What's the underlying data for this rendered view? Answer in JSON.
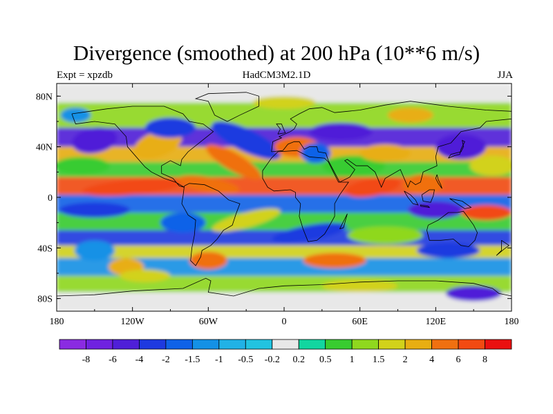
{
  "title": "Divergence (smoothed) at 200 hPa (10**6 m/s)",
  "subtitle_left": "Expt = xpzdb",
  "subtitle_center": "HadCM3M2.1D",
  "subtitle_right": "JJA",
  "map": {
    "lon_range": [
      -180,
      180
    ],
    "lat_range": [
      -90,
      90
    ],
    "lat_ticks": [
      {
        "value": 80,
        "label": "80N"
      },
      {
        "value": 40,
        "label": "40N"
      },
      {
        "value": 0,
        "label": "0"
      },
      {
        "value": -40,
        "label": "40S"
      },
      {
        "value": -80,
        "label": "80S"
      }
    ],
    "lon_ticks": [
      {
        "value": -180,
        "label": "180"
      },
      {
        "value": -120,
        "label": "120W"
      },
      {
        "value": -60,
        "label": "60W"
      },
      {
        "value": 0,
        "label": "0"
      },
      {
        "value": 60,
        "label": "60E"
      },
      {
        "value": 120,
        "label": "120E"
      },
      {
        "value": 180,
        "label": "180"
      }
    ]
  },
  "colorbar": {
    "levels": [
      "-8",
      "-6",
      "-4",
      "-2",
      "-1.5",
      "-1",
      "-0.5",
      "-0.2",
      "0.2",
      "0.5",
      "1",
      "1.5",
      "2",
      "4",
      "6",
      "8"
    ],
    "colors": [
      "#8a2be2",
      "#6f22e0",
      "#4f1fd8",
      "#1e3ae0",
      "#0f62e8",
      "#1491e6",
      "#21b2e6",
      "#22c3e0",
      "#e8e8e8",
      "#12d6a0",
      "#38cc30",
      "#8fd81e",
      "#d2d21a",
      "#e8ae12",
      "#f07010",
      "#f24a12",
      "#ea1010"
    ]
  }
}
